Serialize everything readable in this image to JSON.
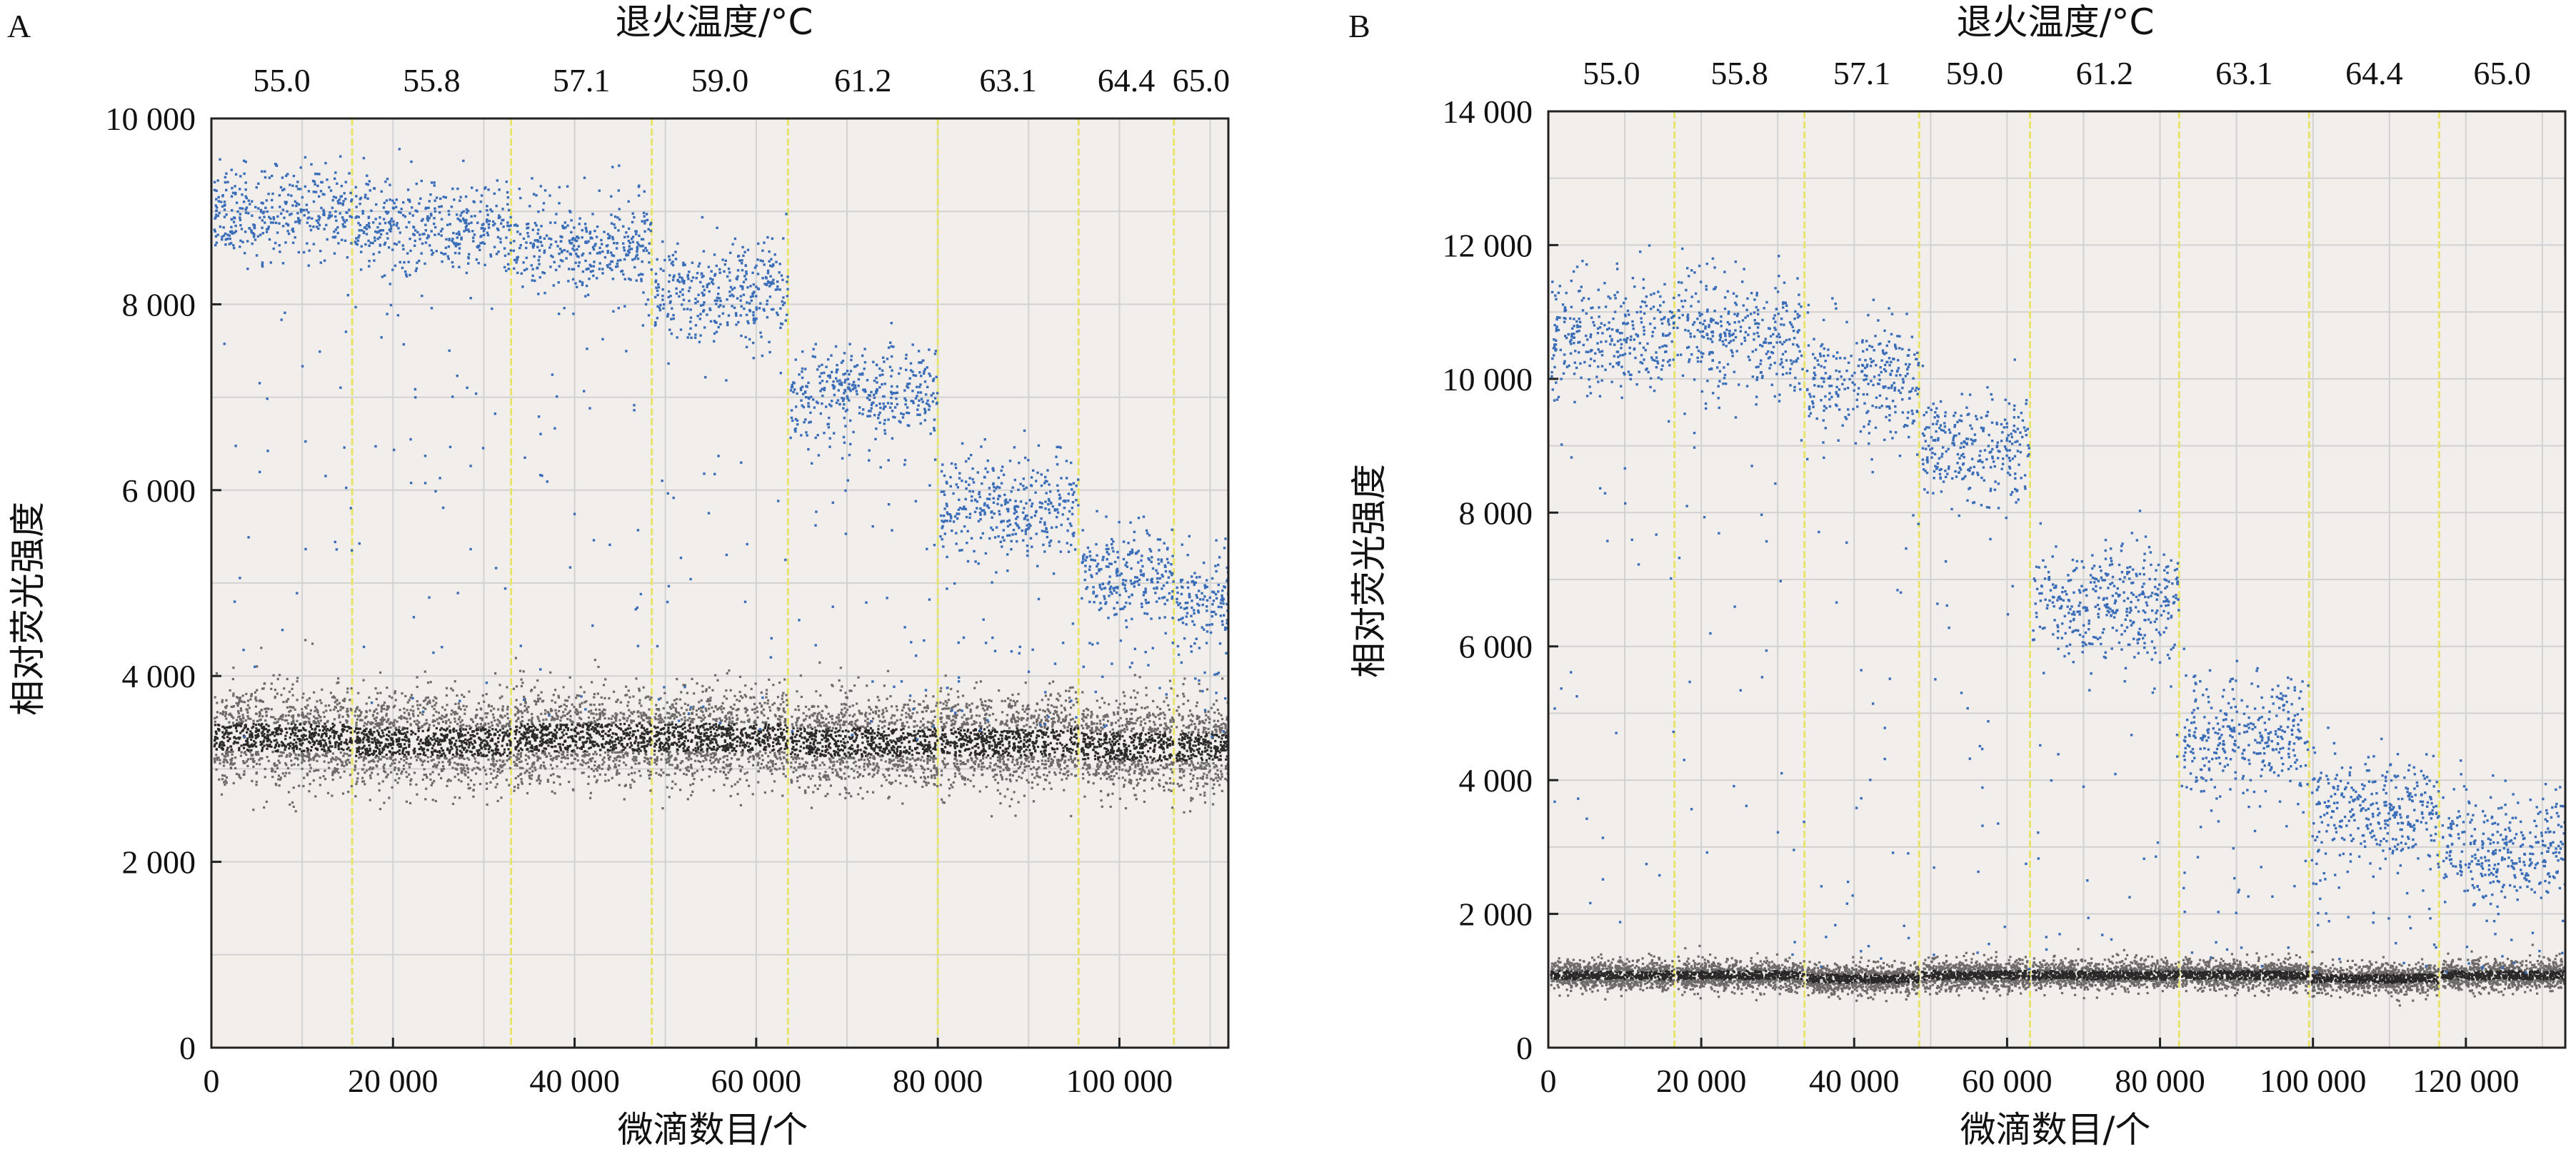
{
  "chart_data": [
    {
      "panel_label": "A",
      "type": "scatter",
      "title": "退火温度/°C",
      "xlabel": "微滴数目/个",
      "ylabel": "相对荧光强度",
      "xlim": [
        0,
        112000
      ],
      "ylim": [
        0,
        10000
      ],
      "x_ticks": [
        0,
        20000,
        40000,
        60000,
        80000,
        100000
      ],
      "x_tick_labels": [
        "0",
        "20 000",
        "40 000",
        "60 000",
        "80 000",
        "100 000"
      ],
      "y_ticks": [
        0,
        2000,
        4000,
        6000,
        8000,
        10000
      ],
      "y_tick_labels": [
        "0",
        "2 000",
        "4 000",
        "6 000",
        "8 000",
        "10 000"
      ],
      "grid": true,
      "divider_color": "#e8e36a",
      "positive_color": "#3a6db8",
      "negative_color": "#3c3a3a",
      "segments": [
        {
          "temperature": "55.0",
          "x_start": 0,
          "x_end": 15500,
          "positive_mean": 9000,
          "negative_mean": 3350
        },
        {
          "temperature": "55.8",
          "x_start": 15500,
          "x_end": 33000,
          "positive_mean": 8850,
          "negative_mean": 3300
        },
        {
          "temperature": "57.1",
          "x_start": 33000,
          "x_end": 48500,
          "positive_mean": 8650,
          "negative_mean": 3350
        },
        {
          "temperature": "59.0",
          "x_start": 48500,
          "x_end": 63500,
          "positive_mean": 8150,
          "negative_mean": 3350
        },
        {
          "temperature": "61.2",
          "x_start": 63500,
          "x_end": 80000,
          "positive_mean": 7050,
          "negative_mean": 3300
        },
        {
          "temperature": "63.1",
          "x_start": 80000,
          "x_end": 95500,
          "positive_mean": 5850,
          "negative_mean": 3300
        },
        {
          "temperature": "64.4",
          "x_start": 95500,
          "x_end": 106000,
          "positive_mean": 5100,
          "negative_mean": 3250
        },
        {
          "temperature": "65.0",
          "x_start": 106000,
          "x_end": 112000,
          "positive_mean": 4850,
          "negative_mean": 3250
        }
      ]
    },
    {
      "panel_label": "B",
      "type": "scatter",
      "title": "退火温度/°C",
      "xlabel": "微滴数目/个",
      "ylabel": "相对荧光强度",
      "xlim": [
        0,
        133000
      ],
      "ylim": [
        0,
        14000
      ],
      "x_ticks": [
        0,
        20000,
        40000,
        60000,
        80000,
        100000,
        120000
      ],
      "x_tick_labels": [
        "0",
        "20 000",
        "40 000",
        "60 000",
        "80 000",
        "100 000",
        "120 000"
      ],
      "y_ticks": [
        0,
        2000,
        4000,
        6000,
        8000,
        10000,
        12000,
        14000
      ],
      "y_tick_labels": [
        "0",
        "2 000",
        "4 000",
        "6 000",
        "8 000",
        "10 000",
        "12 000",
        "14 000"
      ],
      "grid": true,
      "divider_color": "#e8e36a",
      "positive_color": "#3a6db8",
      "negative_color": "#3c3a3a",
      "segments": [
        {
          "temperature": "55.0",
          "x_start": 0,
          "x_end": 16500,
          "positive_mean": 10700,
          "negative_mean": 1100
        },
        {
          "temperature": "55.8",
          "x_start": 16500,
          "x_end": 33500,
          "positive_mean": 10700,
          "negative_mean": 1100
        },
        {
          "temperature": "57.1",
          "x_start": 33500,
          "x_end": 48500,
          "positive_mean": 10000,
          "negative_mean": 1050
        },
        {
          "temperature": "59.0",
          "x_start": 48500,
          "x_end": 63000,
          "positive_mean": 9000,
          "negative_mean": 1100
        },
        {
          "temperature": "61.2",
          "x_start": 63000,
          "x_end": 82500,
          "positive_mean": 6700,
          "negative_mean": 1100
        },
        {
          "temperature": "63.1",
          "x_start": 82500,
          "x_end": 99500,
          "positive_mean": 4700,
          "negative_mean": 1100
        },
        {
          "temperature": "64.4",
          "x_start": 99500,
          "x_end": 116500,
          "positive_mean": 3550,
          "negative_mean": 1050
        },
        {
          "temperature": "65.0",
          "x_start": 116500,
          "x_end": 133000,
          "positive_mean": 3000,
          "negative_mean": 1100
        }
      ]
    }
  ]
}
